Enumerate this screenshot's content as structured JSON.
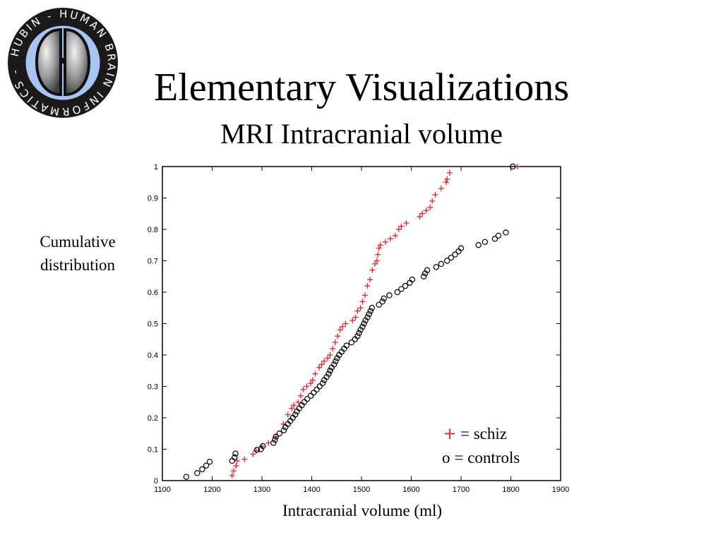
{
  "slide": {
    "title": "Elementary Visualizations",
    "subtitle": "MRI Intracranial volume"
  },
  "logo": {
    "ring_text": "HUBIN - HUMAN BRAIN INFORMATICS -",
    "ring_color": "#a9c4f0",
    "icon": "brain-icon"
  },
  "chart_data": {
    "type": "scatter",
    "xlabel": "Intracranial volume (ml)",
    "ylabel_lines": [
      "Cumulative",
      "distribution"
    ],
    "xlim": [
      1100,
      1900
    ],
    "ylim": [
      0,
      1
    ],
    "xticks": [
      1100,
      1200,
      1300,
      1400,
      1500,
      1600,
      1700,
      1800,
      1900
    ],
    "yticks": [
      0,
      0.1,
      0.2,
      0.3,
      0.4,
      0.5,
      0.6,
      0.7,
      0.8,
      0.9,
      1
    ],
    "grid": false,
    "legend_position": "bottom-right",
    "series": [
      {
        "legend_symbol": "+",
        "legend_label": "= schiz",
        "marker": "plus",
        "color": "#e8222a",
        "x": [
          1240,
          1243,
          1248,
          1250,
          1265,
          1282,
          1288,
          1300,
          1313,
          1328,
          1343,
          1352,
          1360,
          1364,
          1373,
          1378,
          1383,
          1390,
          1398,
          1402,
          1407,
          1415,
          1420,
          1425,
          1432,
          1437,
          1442,
          1447,
          1452,
          1457,
          1462,
          1468,
          1482,
          1488,
          1492,
          1498,
          1502,
          1507,
          1512,
          1517,
          1522,
          1527,
          1531,
          1533,
          1535,
          1538,
          1548,
          1558,
          1568,
          1575,
          1580,
          1590,
          1617,
          1622,
          1630,
          1638,
          1642,
          1648,
          1660,
          1670,
          1672,
          1677,
          1813
        ],
        "y": [
          0.016,
          0.031,
          0.047,
          0.063,
          0.068,
          0.084,
          0.095,
          0.11,
          0.12,
          0.14,
          0.18,
          0.21,
          0.23,
          0.24,
          0.25,
          0.27,
          0.29,
          0.3,
          0.31,
          0.32,
          0.34,
          0.36,
          0.37,
          0.38,
          0.39,
          0.4,
          0.42,
          0.44,
          0.46,
          0.48,
          0.49,
          0.5,
          0.51,
          0.52,
          0.54,
          0.55,
          0.57,
          0.59,
          0.62,
          0.64,
          0.67,
          0.69,
          0.7,
          0.72,
          0.74,
          0.75,
          0.76,
          0.77,
          0.78,
          0.8,
          0.81,
          0.82,
          0.84,
          0.85,
          0.86,
          0.87,
          0.89,
          0.91,
          0.93,
          0.95,
          0.96,
          0.98,
          1.0
        ]
      },
      {
        "legend_symbol": "o",
        "legend_label": "= controls",
        "marker": "circle",
        "color": "#000000",
        "x": [
          1148,
          1170,
          1180,
          1188,
          1195,
          1240,
          1245,
          1247,
          1290,
          1298,
          1302,
          1323,
          1326,
          1328,
          1335,
          1344,
          1347,
          1352,
          1357,
          1362,
          1367,
          1370,
          1375,
          1380,
          1385,
          1391,
          1398,
          1404,
          1410,
          1416,
          1422,
          1425,
          1430,
          1434,
          1437,
          1440,
          1445,
          1448,
          1451,
          1455,
          1460,
          1465,
          1470,
          1480,
          1487,
          1492,
          1495,
          1498,
          1502,
          1505,
          1508,
          1512,
          1515,
          1518,
          1521,
          1535,
          1542,
          1545,
          1556,
          1572,
          1580,
          1588,
          1597,
          1602,
          1625,
          1628,
          1632,
          1650,
          1660,
          1672,
          1680,
          1688,
          1695,
          1700,
          1735,
          1748,
          1768,
          1775,
          1790,
          1804
        ],
        "y": [
          0.012,
          0.024,
          0.036,
          0.048,
          0.06,
          0.063,
          0.074,
          0.086,
          0.098,
          0.1,
          0.11,
          0.12,
          0.13,
          0.14,
          0.15,
          0.16,
          0.17,
          0.18,
          0.19,
          0.2,
          0.21,
          0.22,
          0.23,
          0.24,
          0.25,
          0.26,
          0.27,
          0.28,
          0.29,
          0.3,
          0.31,
          0.32,
          0.33,
          0.34,
          0.35,
          0.36,
          0.37,
          0.38,
          0.39,
          0.4,
          0.41,
          0.42,
          0.43,
          0.44,
          0.45,
          0.46,
          0.47,
          0.48,
          0.49,
          0.5,
          0.51,
          0.52,
          0.53,
          0.54,
          0.55,
          0.56,
          0.57,
          0.58,
          0.59,
          0.6,
          0.61,
          0.62,
          0.63,
          0.64,
          0.65,
          0.66,
          0.67,
          0.68,
          0.69,
          0.7,
          0.71,
          0.72,
          0.73,
          0.74,
          0.75,
          0.76,
          0.77,
          0.78,
          0.79,
          1.0
        ]
      }
    ]
  }
}
